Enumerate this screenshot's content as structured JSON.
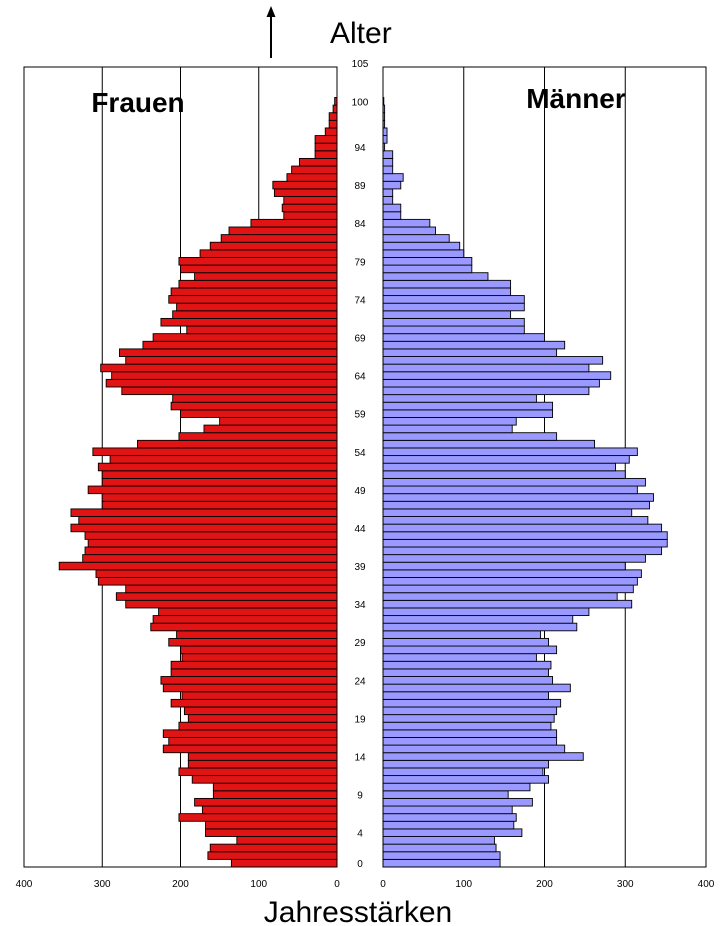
{
  "chart_data": {
    "type": "bar",
    "orientation": "horizontal",
    "layout": "population-pyramid",
    "ylabel": "Alter",
    "xlabel": "Jahresstärken",
    "y_tick_labels": [
      "0",
      "4",
      "9",
      "14",
      "19",
      "24",
      "29",
      "34",
      "39",
      "44",
      "49",
      "54",
      "59",
      "64",
      "69",
      "74",
      "79",
      "84",
      "89",
      "94",
      "100",
      "105"
    ],
    "x_tick_labels": [
      "400",
      "300",
      "200",
      "100",
      "0"
    ],
    "x_range": [
      0,
      400
    ],
    "y_range": [
      0,
      105
    ],
    "grid": true,
    "panels": [
      {
        "name": "Frauen",
        "side": "left",
        "color": "#e01414",
        "ages": [
          0,
          1,
          2,
          3,
          4,
          5,
          6,
          7,
          8,
          9,
          10,
          11,
          12,
          13,
          14,
          15,
          16,
          17,
          18,
          19,
          20,
          21,
          22,
          23,
          24,
          25,
          26,
          27,
          28,
          29,
          30,
          31,
          32,
          33,
          34,
          35,
          36,
          37,
          38,
          39,
          40,
          41,
          42,
          43,
          44,
          45,
          46,
          47,
          48,
          49,
          50,
          51,
          52,
          53,
          54,
          55,
          56,
          57,
          58,
          59,
          60,
          61,
          62,
          63,
          64,
          65,
          66,
          67,
          68,
          69,
          70,
          71,
          72,
          73,
          74,
          75,
          76,
          77,
          78,
          79,
          80,
          81,
          82,
          83,
          84,
          85,
          86,
          87,
          88,
          89,
          90,
          91,
          92,
          93,
          94,
          95,
          96,
          97,
          98,
          99,
          100
        ],
        "values": [
          135,
          165,
          162,
          128,
          168,
          168,
          202,
          172,
          182,
          158,
          158,
          185,
          202,
          190,
          190,
          222,
          215,
          222,
          202,
          190,
          195,
          212,
          198,
          222,
          225,
          212,
          212,
          198,
          200,
          215,
          205,
          238,
          235,
          228,
          270,
          282,
          270,
          305,
          308,
          355,
          325,
          322,
          318,
          322,
          340,
          330,
          340,
          300,
          300,
          318,
          300,
          300,
          305,
          290,
          312,
          255,
          202,
          170,
          150,
          200,
          212,
          210,
          275,
          295,
          288,
          302,
          270,
          278,
          248,
          235,
          192,
          225,
          210,
          205,
          215,
          212,
          202,
          182,
          200,
          202,
          175,
          162,
          148,
          138,
          110,
          68,
          70,
          68,
          80,
          82,
          64,
          58,
          48,
          28,
          28,
          28,
          15,
          10,
          10,
          5,
          3
        ]
      },
      {
        "name": "Männer",
        "side": "right",
        "color": "#9999ff",
        "ages": [
          0,
          1,
          2,
          3,
          4,
          5,
          6,
          7,
          8,
          9,
          10,
          11,
          12,
          13,
          14,
          15,
          16,
          17,
          18,
          19,
          20,
          21,
          22,
          23,
          24,
          25,
          26,
          27,
          28,
          29,
          30,
          31,
          32,
          33,
          34,
          35,
          36,
          37,
          38,
          39,
          40,
          41,
          42,
          43,
          44,
          45,
          46,
          47,
          48,
          49,
          50,
          51,
          52,
          53,
          54,
          55,
          56,
          57,
          58,
          59,
          60,
          61,
          62,
          63,
          64,
          65,
          66,
          67,
          68,
          69,
          70,
          71,
          72,
          73,
          74,
          75,
          76,
          77,
          78,
          79,
          80,
          81,
          82,
          83,
          84,
          85,
          86,
          87,
          88,
          89,
          90,
          91,
          92,
          93,
          94,
          95,
          96,
          97,
          98,
          99,
          100
        ],
        "values": [
          145,
          145,
          140,
          138,
          172,
          162,
          165,
          160,
          185,
          155,
          182,
          205,
          198,
          205,
          248,
          225,
          215,
          215,
          208,
          212,
          215,
          220,
          205,
          232,
          210,
          205,
          208,
          190,
          215,
          205,
          195,
          240,
          235,
          255,
          308,
          290,
          310,
          315,
          320,
          300,
          325,
          345,
          352,
          352,
          345,
          328,
          308,
          330,
          335,
          315,
          325,
          300,
          288,
          305,
          315,
          262,
          215,
          160,
          165,
          210,
          210,
          190,
          255,
          268,
          282,
          255,
          272,
          215,
          225,
          200,
          175,
          175,
          158,
          175,
          175,
          158,
          158,
          130,
          110,
          110,
          100,
          95,
          82,
          65,
          58,
          22,
          22,
          12,
          12,
          22,
          25,
          12,
          12,
          12,
          2,
          5,
          5,
          2,
          2,
          2,
          1
        ]
      }
    ]
  }
}
